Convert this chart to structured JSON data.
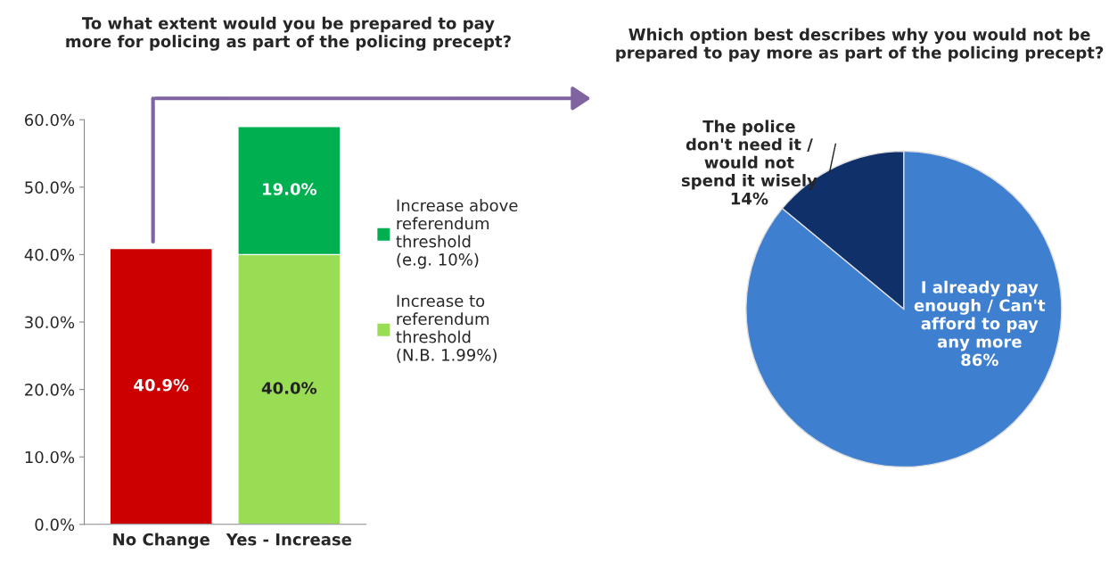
{
  "chart_data": [
    {
      "type": "bar",
      "title": "To what extent would you be prepared to pay\nmore for policing as part of the policing precept?",
      "categories": [
        "No Change",
        "Yes - Increase"
      ],
      "stacked": true,
      "series": [
        {
          "name": "Increase to\nreferendum\nthreshold\n(N.B. 1.99%)",
          "color": "#99dd55",
          "colors": [
            "#cc0000",
            "#99dd55"
          ],
          "values": [
            40.9,
            40.0
          ],
          "value_labels": [
            "40.9%",
            "40.0%"
          ]
        },
        {
          "name": "Increase above\nreferendum\nthreshold\n(e.g. 10%)",
          "color": "#00b050",
          "colors": [
            "#00b050",
            "#00b050"
          ],
          "values": [
            null,
            19.0
          ],
          "value_labels": [
            null,
            "19.0%"
          ]
        }
      ],
      "ylim": [
        0,
        60
      ],
      "yticks": [
        {
          "value": 0,
          "label": "0.0%"
        },
        {
          "value": 10,
          "label": "10.0%"
        },
        {
          "value": 20,
          "label": "20.0%"
        },
        {
          "value": 30,
          "label": "30.0%"
        },
        {
          "value": 40,
          "label": "40.0%"
        },
        {
          "value": 50,
          "label": "50.0%"
        },
        {
          "value": 60,
          "label": "60.0%"
        }
      ],
      "grid": false,
      "legend": "right"
    },
    {
      "type": "pie",
      "title": "Which option best describes why you would not be\nprepared to pay more as part of the policing precept?",
      "categories": [
        "The police\ndon't need it /\nwould not\nspend it wisely",
        "I already pay\nenough / Can't\nafford to pay\nany more"
      ],
      "values": [
        14,
        86
      ],
      "colors": [
        "#10306a",
        "#3f7fcf"
      ],
      "value_labels": [
        "14%",
        "86%"
      ],
      "legend": false
    }
  ]
}
